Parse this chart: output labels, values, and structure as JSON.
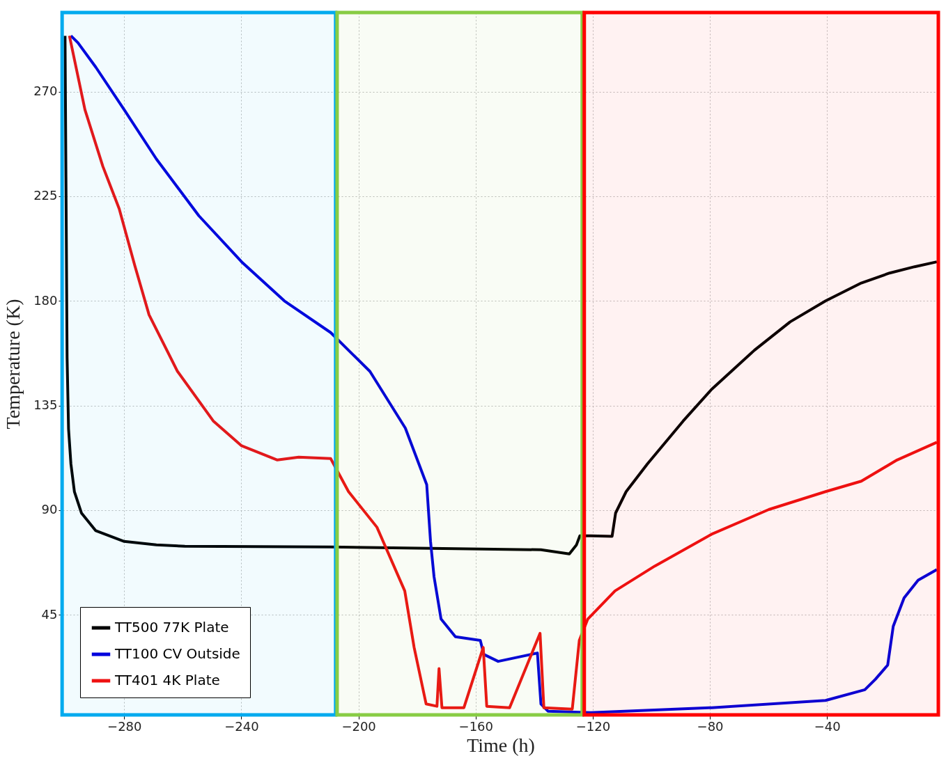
{
  "chart_data": {
    "type": "line",
    "xlabel": "Time (h)",
    "ylabel": "Temperature (K)",
    "xlim": [
      -301,
      -2
    ],
    "ylim": [
      2,
      304
    ],
    "xticks": [
      -280,
      -240,
      -200,
      -160,
      -120,
      -80,
      -40
    ],
    "yticks": [
      45,
      90,
      135,
      180,
      225,
      270
    ],
    "grid": true,
    "legend": "bottom left",
    "line_style": "solid",
    "marker": "none",
    "series": [
      {
        "name": "TT500 77K Plate",
        "color": "#000000",
        "x": [
          -300.2,
          -299.5,
          -299,
          -298.2,
          -297,
          -294.6,
          -289.7,
          -280,
          -269,
          -259.3,
          -209.5,
          -175.4,
          -137.7,
          -128,
          -125.6,
          -124.4,
          -120.7,
          -113.4,
          -112.2,
          -108.6,
          -101.3,
          -89.1,
          -79.4,
          -64.8,
          -52.6,
          -40.5,
          -28.3,
          -18.6,
          -10.1,
          -2.5
        ],
        "values": [
          294,
          155.7,
          125,
          110,
          98,
          88.8,
          81.2,
          76.6,
          75.1,
          74.5,
          74.2,
          73.6,
          73,
          71.2,
          75,
          79,
          79,
          78.8,
          88.8,
          98,
          110,
          128.4,
          142,
          158.8,
          171,
          180,
          187.7,
          192,
          194.7,
          196.8
        ]
      },
      {
        "name": "TT100 CV Outside",
        "color": "#0000dd",
        "x": [
          -298.2,
          -295.8,
          -289.7,
          -280,
          -269,
          -254.5,
          -239.9,
          -225.3,
          -209.5,
          -196.1,
          -184,
          -176.7,
          -175.4,
          -174.2,
          -171.8,
          -166.9,
          -158.4,
          -157.2,
          -152.3,
          -138.9,
          -137.7,
          -135.3,
          -120.7,
          -79.4,
          -40.5,
          -27.1,
          -23.5,
          -19.3,
          -17.4,
          -13.7,
          -8.9,
          -2.5
        ],
        "values": [
          294,
          291,
          280.5,
          262.2,
          241,
          216.6,
          196.8,
          180,
          166.4,
          149.7,
          125.3,
          101,
          76.6,
          61.4,
          43.2,
          35.6,
          34,
          28,
          25,
          28.6,
          6.7,
          3.6,
          3,
          5.1,
          8.2,
          12.8,
          17.3,
          23.4,
          40.1,
          52.3,
          59.9,
          64.5
        ]
      },
      {
        "name": "TT401 4K Plate",
        "color": "#ee1111",
        "x": [
          -298.7,
          -293.4,
          -287.3,
          -281.7,
          -276.4,
          -271.5,
          -261.8,
          -249.6,
          -239.9,
          -227.7,
          -220.4,
          -209.5,
          -203.4,
          -193.7,
          -184.2,
          -181,
          -176.9,
          -173.2,
          -172.5,
          -171.5,
          -164,
          -157.4,
          -156.2,
          -148.4,
          -138,
          -136.7,
          -127,
          -124.6,
          -121.7,
          -112.4,
          -98.8,
          -79.4,
          -59.9,
          -40.5,
          -28.3,
          -16.1,
          -2.5
        ],
        "values": [
          294,
          262.2,
          237.9,
          219.6,
          195.3,
          174,
          149.7,
          128.4,
          117.7,
          111.6,
          112.8,
          112.2,
          98,
          82.7,
          55.3,
          31,
          6.7,
          5.7,
          21.9,
          5.1,
          5.1,
          31,
          5.7,
          5.1,
          37.1,
          5.1,
          4.5,
          34,
          43.2,
          55.3,
          66,
          79.7,
          90.3,
          98,
          102.5,
          111.6,
          119.2
        ]
      }
    ],
    "bands": [
      {
        "axis": "x",
        "from": -301.2,
        "to": -207.8,
        "color": "#00aaee"
      },
      {
        "axis": "x",
        "from": -207.3,
        "to": -123.6,
        "color": "#88cc44"
      },
      {
        "axis": "x",
        "from": -122.9,
        "to": -2,
        "color": "#ff0000"
      }
    ]
  }
}
